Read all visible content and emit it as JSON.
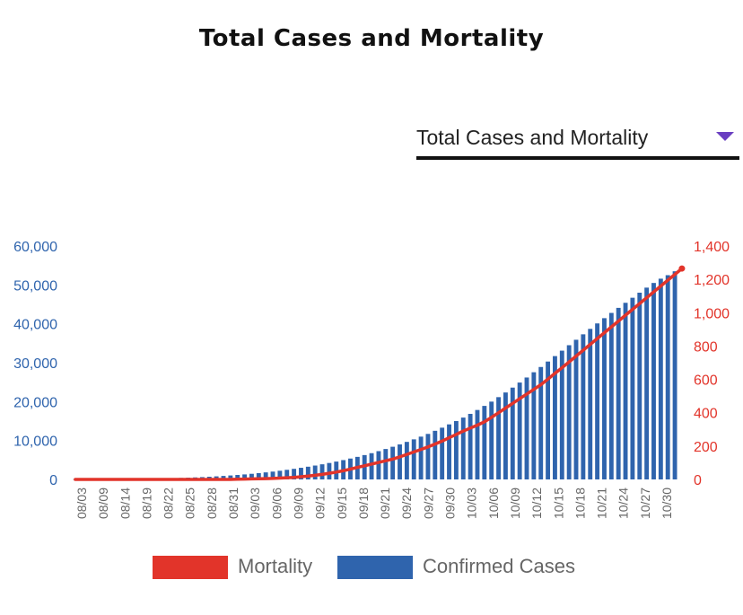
{
  "page_title": "Total Cases and Mortality",
  "dropdown": {
    "selected": "Total Cases and Mortality"
  },
  "colors": {
    "cases": "#2f64ad",
    "mortality": "#e2342a",
    "left_axis_text": "#2f64ad",
    "right_axis_text": "#e2342a",
    "dropdown_caret": "#6a3fc1"
  },
  "icons": {
    "dropdown": "caret-down-icon"
  },
  "legend": [
    {
      "label": "Mortality",
      "color": "#e2342a"
    },
    {
      "label": "Confirmed Cases",
      "color": "#2f64ad"
    }
  ],
  "chart_data": {
    "type": "bar",
    "x_tick_labels": [
      "08/03",
      "08/09",
      "08/14",
      "08/19",
      "08/22",
      "08/25",
      "08/28",
      "08/31",
      "09/03",
      "09/06",
      "09/09",
      "09/12",
      "09/15",
      "09/18",
      "09/21",
      "09/24",
      "09/27",
      "09/30",
      "10/03",
      "10/06",
      "10/09",
      "10/12",
      "10/15",
      "10/18",
      "10/21",
      "10/24",
      "10/27",
      "10/30"
    ],
    "y_left": {
      "ticks": [
        "0",
        "10,000",
        "20,000",
        "30,000",
        "40,000",
        "50,000",
        "60,000"
      ],
      "range": [
        0,
        60000
      ]
    },
    "y_right": {
      "ticks": [
        "0",
        "200",
        "400",
        "600",
        "800",
        "1,000",
        "1,200",
        "1,400"
      ],
      "range": [
        0,
        1400
      ]
    },
    "series": [
      {
        "name": "Confirmed Cases",
        "type": "bar",
        "axis": "left",
        "values": [
          50,
          60,
          70,
          80,
          90,
          100,
          120,
          140,
          160,
          180,
          200,
          230,
          260,
          300,
          340,
          390,
          450,
          520,
          600,
          690,
          790,
          900,
          1020,
          1150,
          1290,
          1450,
          1620,
          1810,
          2010,
          2230,
          2470,
          2720,
          2990,
          3270,
          3570,
          3890,
          4230,
          4590,
          4970,
          5370,
          5800,
          6260,
          6750,
          7270,
          7820,
          8400,
          9000,
          9650,
          10300,
          11000,
          11700,
          12500,
          13300,
          14150,
          15000,
          15900,
          16850,
          17850,
          18900,
          20000,
          21150,
          22350,
          23600,
          24900,
          26200,
          27550,
          28900,
          30300,
          31700,
          33100,
          34500,
          35900,
          37300,
          38700,
          40100,
          41450,
          42800,
          44100,
          45400,
          46700,
          48000,
          49300,
          50500,
          51600,
          52500,
          53500
        ]
      },
      {
        "name": "Mortality",
        "type": "line",
        "axis": "right",
        "values": [
          0,
          0,
          0,
          0,
          0,
          0,
          0,
          0,
          0,
          0,
          0,
          0,
          0,
          0,
          0,
          0,
          0,
          0,
          0,
          0,
          0,
          0,
          0,
          1,
          2,
          3,
          4,
          5,
          6,
          8,
          10,
          12,
          16,
          20,
          25,
          30,
          37,
          44,
          52,
          62,
          72,
          82,
          92,
          102,
          112,
          122,
          135,
          150,
          165,
          180,
          195,
          212,
          230,
          250,
          270,
          290,
          308,
          326,
          345,
          372,
          400,
          428,
          456,
          484,
          512,
          540,
          568,
          602,
          636,
          670,
          705,
          740,
          775,
          810,
          845,
          880,
          915,
          950,
          985,
          1020,
          1055,
          1090,
          1125,
          1160,
          1195,
          1230,
          1265
        ]
      }
    ]
  }
}
